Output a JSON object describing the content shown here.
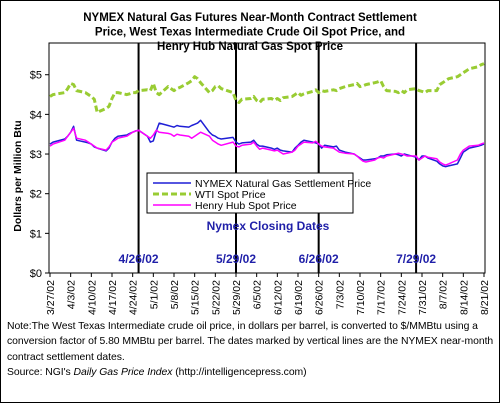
{
  "colors": {
    "nymex": "#1f1fd6",
    "wti": "#99cc33",
    "henry": "#ff00ff",
    "annotation": "#1f1fa8",
    "vline": "#000000"
  },
  "chart_data": {
    "type": "line",
    "title_lines": [
      "NYMEX Natural Gas Futures Near-Month Contract Settlement",
      "Price, West Texas Intermediate Crude Oil Spot Price, and",
      "Henry Hub Natural Gas Spot Price"
    ],
    "ylabel": "Dollars per Million Btu",
    "xlabel": "",
    "ylim": [
      0,
      5.8
    ],
    "yticks": [
      0,
      1,
      2,
      3,
      4,
      5
    ],
    "ytick_labels": [
      "$0",
      "$1",
      "$2",
      "$3",
      "$4",
      "$5"
    ],
    "x_tick_labels": [
      "3/27/02",
      "4/3/02",
      "4/10/02",
      "4/17/02",
      "4/24/02",
      "5/1/02",
      "5/8/02",
      "5/15/02",
      "5/22/02",
      "5/29/02",
      "6/5/02",
      "6/12/02",
      "6/19/02",
      "6/26/02",
      "7/3/02",
      "7/10/02",
      "7/17/02",
      "7/24/02",
      "7/31/02",
      "8/7/02",
      "8/14/02",
      "8/21/02"
    ],
    "grid": false,
    "legend": [
      "NYMEX Natural Gas Settlement Price",
      "WTI Spot Price",
      "Henry Hub Spot Price"
    ],
    "annotation": "Nymex Closing Dates",
    "closing_dates": [
      "4/26/02",
      "5/29/02",
      "6/26/02",
      "7/29/02"
    ],
    "closing_date_labels": [
      "4/26/02",
      "5/29/02",
      "6/26/02",
      "7/29/02"
    ],
    "x": [
      "3/27/02",
      "3/28/02",
      "4/1/02",
      "4/2/02",
      "4/3/02",
      "4/4/02",
      "4/5/02",
      "4/8/02",
      "4/9/02",
      "4/10/02",
      "4/11/02",
      "4/12/02",
      "4/15/02",
      "4/16/02",
      "4/17/02",
      "4/18/02",
      "4/19/02",
      "4/22/02",
      "4/23/02",
      "4/24/02",
      "4/25/02",
      "4/26/02",
      "4/29/02",
      "4/30/02",
      "5/1/02",
      "5/2/02",
      "5/3/02",
      "5/6/02",
      "5/7/02",
      "5/8/02",
      "5/9/02",
      "5/10/02",
      "5/13/02",
      "5/14/02",
      "5/15/02",
      "5/16/02",
      "5/17/02",
      "5/20/02",
      "5/21/02",
      "5/22/02",
      "5/23/02",
      "5/24/02",
      "5/28/02",
      "5/29/02",
      "5/30/02",
      "5/31/02",
      "6/3/02",
      "6/4/02",
      "6/5/02",
      "6/6/02",
      "6/7/02",
      "6/10/02",
      "6/11/02",
      "6/12/02",
      "6/13/02",
      "6/14/02",
      "6/17/02",
      "6/18/02",
      "6/19/02",
      "6/20/02",
      "6/21/02",
      "6/24/02",
      "6/25/02",
      "6/26/02",
      "6/27/02",
      "6/28/02",
      "7/1/02",
      "7/2/02",
      "7/3/02",
      "7/5/02",
      "7/8/02",
      "7/9/02",
      "7/10/02",
      "7/11/02",
      "7/12/02",
      "7/15/02",
      "7/16/02",
      "7/17/02",
      "7/18/02",
      "7/19/02",
      "7/22/02",
      "7/23/02",
      "7/24/02",
      "7/25/02",
      "7/26/02",
      "7/29/02",
      "7/30/02",
      "7/31/02",
      "8/1/02",
      "8/2/02",
      "8/5/02",
      "8/6/02",
      "8/7/02",
      "8/8/02",
      "8/9/02",
      "8/12/02",
      "8/13/02",
      "8/14/02",
      "8/15/02",
      "8/16/02",
      "8/19/02",
      "8/20/02",
      "8/21/02"
    ],
    "series": [
      {
        "name": "NYMEX Natural Gas Settlement Price",
        "values": [
          3.25,
          3.3,
          3.38,
          3.45,
          3.55,
          3.7,
          3.35,
          3.3,
          3.28,
          3.25,
          3.18,
          3.15,
          3.08,
          3.15,
          3.3,
          3.4,
          3.45,
          3.48,
          3.52,
          3.55,
          3.58,
          3.6,
          3.45,
          3.3,
          3.33,
          3.58,
          3.78,
          3.72,
          3.7,
          3.68,
          3.72,
          3.7,
          3.68,
          3.72,
          3.75,
          3.78,
          3.85,
          3.55,
          3.48,
          3.45,
          3.4,
          3.38,
          3.42,
          3.3,
          3.25,
          3.28,
          3.3,
          3.35,
          3.25,
          3.2,
          3.2,
          3.15,
          3.12,
          3.15,
          3.1,
          3.08,
          3.05,
          3.15,
          3.22,
          3.3,
          3.35,
          3.3,
          3.28,
          3.25,
          3.15,
          3.22,
          3.18,
          3.2,
          3.1,
          3.05,
          3.0,
          2.95,
          2.9,
          2.85,
          2.85,
          2.88,
          2.9,
          2.95,
          2.95,
          2.98,
          3.0,
          2.98,
          2.95,
          3.0,
          2.98,
          2.92,
          2.85,
          2.95,
          2.95,
          2.9,
          2.82,
          2.75,
          2.7,
          2.68,
          2.7,
          2.75,
          2.9,
          3.05,
          3.1,
          3.15,
          3.2,
          3.22,
          3.25
        ]
      },
      {
        "name": "WTI Spot Price",
        "values": [
          4.45,
          4.5,
          4.55,
          4.65,
          4.78,
          4.75,
          4.6,
          4.55,
          4.5,
          4.45,
          4.38,
          4.05,
          4.15,
          4.2,
          4.4,
          4.55,
          4.55,
          4.5,
          4.52,
          4.55,
          4.55,
          4.6,
          4.62,
          4.6,
          4.78,
          4.55,
          4.5,
          4.7,
          4.65,
          4.6,
          4.65,
          4.68,
          4.8,
          4.85,
          4.95,
          4.9,
          4.8,
          4.55,
          4.6,
          4.7,
          4.72,
          4.65,
          4.55,
          4.35,
          4.3,
          4.38,
          4.4,
          4.45,
          4.35,
          4.3,
          4.38,
          4.4,
          4.35,
          4.4,
          4.35,
          4.42,
          4.45,
          4.5,
          4.55,
          4.48,
          4.52,
          4.58,
          4.62,
          4.55,
          4.6,
          4.58,
          4.62,
          4.6,
          4.65,
          4.7,
          4.75,
          4.78,
          4.7,
          4.72,
          4.75,
          4.8,
          4.82,
          4.85,
          4.7,
          4.6,
          4.58,
          4.55,
          4.6,
          4.55,
          4.62,
          4.65,
          4.6,
          4.58,
          4.55,
          4.6,
          4.6,
          4.75,
          4.8,
          4.85,
          4.9,
          4.95,
          5.0,
          5.05,
          5.1,
          5.15,
          5.2,
          5.25,
          5.28
        ]
      },
      {
        "name": "Henry Hub Spot Price",
        "values": [
          3.2,
          3.25,
          3.35,
          3.45,
          3.55,
          3.65,
          3.4,
          3.35,
          3.3,
          3.25,
          3.2,
          3.15,
          3.1,
          3.18,
          3.3,
          3.35,
          3.4,
          3.45,
          3.5,
          3.55,
          3.58,
          3.6,
          3.45,
          3.4,
          3.48,
          3.6,
          3.55,
          3.52,
          3.5,
          3.45,
          3.5,
          3.48,
          3.45,
          3.4,
          3.45,
          3.5,
          3.55,
          3.45,
          3.35,
          3.3,
          3.25,
          3.22,
          3.3,
          3.2,
          3.18,
          3.22,
          3.25,
          3.3,
          3.2,
          3.12,
          3.15,
          3.1,
          3.08,
          3.1,
          3.05,
          3.0,
          3.05,
          3.1,
          3.2,
          3.25,
          3.3,
          3.28,
          3.32,
          3.25,
          3.2,
          3.18,
          3.15,
          3.1,
          3.05,
          3.02,
          3.0,
          2.95,
          2.88,
          2.82,
          2.8,
          2.85,
          2.9,
          2.92,
          2.9,
          2.95,
          3.0,
          3.02,
          3.0,
          2.98,
          2.95,
          2.95,
          2.85,
          2.9,
          2.95,
          2.92,
          2.88,
          2.8,
          2.75,
          2.72,
          2.75,
          2.85,
          3.0,
          3.1,
          3.15,
          3.2,
          3.22,
          3.25,
          3.28
        ]
      }
    ]
  },
  "note": {
    "text_before_source": "Note:The West Texas Intermediate crude oil price, in dollars per barrel,  is converted to $/MMBtu using a conversion factor of 5.80 MMBtu per barrel.  The dates marked by vertical lines are the NYMEX near-month contract settlement dates.",
    "source_label": "Source:  NGI's ",
    "source_publication": "Daily Gas Price Index",
    "source_url": " (http://intelligencepress.com)"
  }
}
